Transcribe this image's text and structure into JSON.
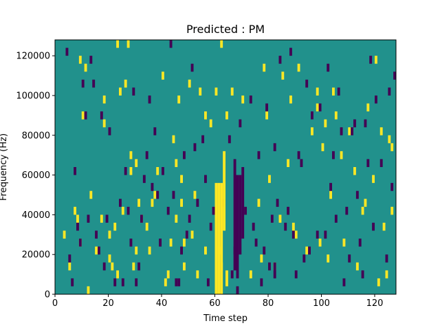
{
  "chart_data": {
    "type": "heatmap",
    "title": "Predicted : PM",
    "xlabel": "Time step",
    "ylabel": "Frequency (Hz)",
    "xlim": [
      0,
      128
    ],
    "ylim": [
      0,
      128000
    ],
    "x_ticks": [
      0,
      20,
      40,
      60,
      80,
      100,
      120
    ],
    "x_tick_labels": [
      "0",
      "20",
      "40",
      "60",
      "80",
      "100",
      "120"
    ],
    "y_ticks": [
      0,
      20000,
      40000,
      60000,
      80000,
      100000,
      120000
    ],
    "y_tick_labels": [
      "0",
      "20000",
      "40000",
      "60000",
      "80000",
      "100000",
      "120000"
    ],
    "colormap": "viridis",
    "colors": {
      "background": "#21918c",
      "high": "#fde725",
      "low": "#440154"
    },
    "bin_width_time": 1,
    "bin_height_hz": 4000,
    "high_cells": [
      [
        3,
        28000
      ],
      [
        5,
        12000
      ],
      [
        7,
        40000
      ],
      [
        8,
        36000
      ],
      [
        9,
        116000
      ],
      [
        9,
        24000
      ],
      [
        10,
        88000
      ],
      [
        11,
        112000
      ],
      [
        12,
        0
      ],
      [
        13,
        48000
      ],
      [
        15,
        20000
      ],
      [
        17,
        36000
      ],
      [
        18,
        84000
      ],
      [
        18,
        96000
      ],
      [
        20,
        16000
      ],
      [
        20,
        28000
      ],
      [
        21,
        12000
      ],
      [
        22,
        32000
      ],
      [
        23,
        124000
      ],
      [
        23,
        8000
      ],
      [
        24,
        100000
      ],
      [
        25,
        40000
      ],
      [
        26,
        104000
      ],
      [
        27,
        124000
      ],
      [
        28,
        60000
      ],
      [
        28,
        68000
      ],
      [
        29,
        12000
      ],
      [
        30,
        64000
      ],
      [
        30,
        20000
      ],
      [
        31,
        44000
      ],
      [
        32,
        36000
      ],
      [
        34,
        32000
      ],
      [
        35,
        20000
      ],
      [
        36,
        44000
      ],
      [
        37,
        48000
      ],
      [
        38,
        60000
      ],
      [
        40,
        108000
      ],
      [
        41,
        4000
      ],
      [
        42,
        8000
      ],
      [
        43,
        24000
      ],
      [
        44,
        76000
      ],
      [
        45,
        64000
      ],
      [
        45,
        36000
      ],
      [
        46,
        96000
      ],
      [
        47,
        56000
      ],
      [
        47,
        44000
      ],
      [
        48,
        24000
      ],
      [
        48,
        12000
      ],
      [
        50,
        104000
      ],
      [
        51,
        28000
      ],
      [
        52,
        48000
      ],
      [
        53,
        8000
      ],
      [
        54,
        100000
      ],
      [
        56,
        88000
      ],
      [
        56,
        20000
      ],
      [
        58,
        84000
      ],
      [
        60,
        100000
      ],
      [
        61,
        20000
      ],
      [
        62,
        124000
      ],
      [
        62,
        12000
      ],
      [
        64,
        88000
      ],
      [
        66,
        100000
      ],
      [
        70,
        96000
      ],
      [
        73,
        8000
      ],
      [
        76,
        44000
      ],
      [
        77,
        16000
      ],
      [
        78,
        112000
      ],
      [
        79,
        88000
      ],
      [
        80,
        56000
      ],
      [
        82,
        12000
      ],
      [
        84,
        36000
      ],
      [
        85,
        108000
      ],
      [
        87,
        64000
      ],
      [
        88,
        96000
      ],
      [
        89,
        32000
      ],
      [
        90,
        28000
      ],
      [
        91,
        112000
      ],
      [
        94,
        20000
      ],
      [
        96,
        80000
      ],
      [
        98,
        100000
      ],
      [
        98,
        92000
      ],
      [
        99,
        24000
      ],
      [
        100,
        72000
      ],
      [
        101,
        84000
      ],
      [
        102,
        16000
      ],
      [
        103,
        48000
      ],
      [
        104,
        100000
      ],
      [
        105,
        88000
      ],
      [
        107,
        68000
      ],
      [
        108,
        24000
      ],
      [
        110,
        80000
      ],
      [
        112,
        60000
      ],
      [
        113,
        12000
      ],
      [
        115,
        40000
      ],
      [
        116,
        44000
      ],
      [
        117,
        92000
      ],
      [
        119,
        56000
      ],
      [
        120,
        116000
      ],
      [
        121,
        4000
      ],
      [
        122,
        80000
      ],
      [
        123,
        32000
      ],
      [
        124,
        8000
      ],
      [
        125,
        76000
      ],
      [
        126,
        72000
      ],
      [
        126,
        40000
      ]
    ],
    "high_cells_span": [
      [
        60,
        0,
        56000
      ],
      [
        61,
        0,
        56000
      ],
      [
        62,
        0,
        56000
      ],
      [
        63,
        32000,
        40000
      ],
      [
        64,
        4000,
        8000
      ]
    ],
    "low_cells": [
      [
        4,
        120000
      ],
      [
        5,
        16000
      ],
      [
        6,
        4000
      ],
      [
        7,
        60000
      ],
      [
        8,
        32000
      ],
      [
        9,
        24000
      ],
      [
        10,
        104000
      ],
      [
        11,
        88000
      ],
      [
        12,
        36000
      ],
      [
        13,
        116000
      ],
      [
        14,
        104000
      ],
      [
        15,
        28000
      ],
      [
        16,
        20000
      ],
      [
        17,
        88000
      ],
      [
        18,
        12000
      ],
      [
        19,
        36000
      ],
      [
        20,
        80000
      ],
      [
        22,
        4000
      ],
      [
        24,
        44000
      ],
      [
        25,
        4000
      ],
      [
        26,
        60000
      ],
      [
        27,
        40000
      ],
      [
        28,
        24000
      ],
      [
        29,
        100000
      ],
      [
        30,
        4000
      ],
      [
        31,
        12000
      ],
      [
        32,
        36000
      ],
      [
        33,
        56000
      ],
      [
        34,
        68000
      ],
      [
        35,
        96000
      ],
      [
        36,
        52000
      ],
      [
        37,
        80000
      ],
      [
        38,
        48000
      ],
      [
        39,
        24000
      ],
      [
        40,
        60000
      ],
      [
        42,
        40000
      ],
      [
        43,
        124000
      ],
      [
        44,
        48000
      ],
      [
        45,
        4000
      ],
      [
        46,
        4000
      ],
      [
        47,
        20000
      ],
      [
        48,
        68000
      ],
      [
        49,
        28000
      ],
      [
        50,
        36000
      ],
      [
        51,
        112000
      ],
      [
        52,
        72000
      ],
      [
        53,
        44000
      ],
      [
        55,
        76000
      ],
      [
        56,
        56000
      ],
      [
        57,
        4000
      ],
      [
        58,
        32000
      ],
      [
        59,
        40000
      ],
      [
        61,
        12000
      ],
      [
        63,
        44000
      ],
      [
        65,
        76000
      ],
      [
        66,
        8000
      ],
      [
        67,
        20000
      ],
      [
        68,
        0
      ],
      [
        69,
        84000
      ],
      [
        71,
        40000
      ],
      [
        73,
        96000
      ],
      [
        74,
        32000
      ],
      [
        75,
        24000
      ],
      [
        76,
        68000
      ],
      [
        77,
        4000
      ],
      [
        78,
        20000
      ],
      [
        79,
        92000
      ],
      [
        80,
        12000
      ],
      [
        81,
        36000
      ],
      [
        82,
        72000
      ],
      [
        83,
        44000
      ],
      [
        84,
        116000
      ],
      [
        86,
        32000
      ],
      [
        87,
        40000
      ],
      [
        88,
        120000
      ],
      [
        89,
        28000
      ],
      [
        90,
        8000
      ],
      [
        91,
        68000
      ],
      [
        92,
        64000
      ],
      [
        93,
        16000
      ],
      [
        94,
        104000
      ],
      [
        95,
        20000
      ],
      [
        96,
        88000
      ],
      [
        98,
        28000
      ],
      [
        99,
        92000
      ],
      [
        101,
        28000
      ],
      [
        102,
        112000
      ],
      [
        103,
        52000
      ],
      [
        104,
        68000
      ],
      [
        105,
        36000
      ],
      [
        106,
        100000
      ],
      [
        107,
        80000
      ],
      [
        108,
        4000
      ],
      [
        109,
        40000
      ],
      [
        110,
        16000
      ],
      [
        111,
        80000
      ],
      [
        112,
        84000
      ],
      [
        113,
        48000
      ],
      [
        114,
        24000
      ],
      [
        115,
        8000
      ],
      [
        116,
        84000
      ],
      [
        117,
        64000
      ],
      [
        118,
        116000
      ],
      [
        119,
        32000
      ],
      [
        120,
        96000
      ],
      [
        122,
        64000
      ],
      [
        124,
        16000
      ],
      [
        125,
        100000
      ],
      [
        126,
        52000
      ],
      [
        127,
        108000
      ]
    ],
    "low_cells_span": [
      [
        67,
        12000,
        56000
      ],
      [
        68,
        8000,
        52000
      ],
      [
        69,
        20000,
        40000
      ],
      [
        70,
        28000,
        36000
      ],
      [
        82,
        8000,
        8000
      ]
    ]
  }
}
